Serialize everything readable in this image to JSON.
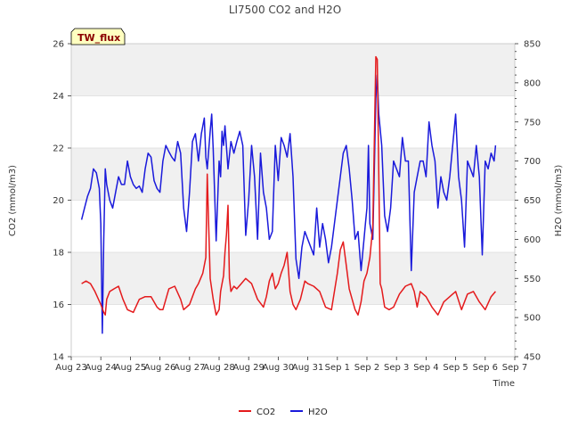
{
  "chart_data": {
    "type": "line",
    "title": "LI7500 CO2 and H2O",
    "site_label": "TW_flux",
    "xlabel": "Time",
    "ylabel_left": "CO2 (mmol/m3)",
    "ylabel_right": "H2O (mmol/m3)",
    "ylim_left": [
      14,
      26
    ],
    "ylim_right": [
      450,
      850
    ],
    "left_ticks": [
      14,
      16,
      18,
      20,
      22,
      24,
      26
    ],
    "right_ticks": [
      450,
      500,
      550,
      600,
      650,
      700,
      750,
      800,
      850
    ],
    "x_ticks": [
      "Aug 23",
      "Aug 24",
      "Aug 25",
      "Aug 26",
      "Aug 27",
      "Aug 28",
      "Aug 29",
      "Aug 30",
      "Aug 31",
      "Sep 1",
      "Sep 2",
      "Sep 3",
      "Sep 4",
      "Sep 5",
      "Sep 6",
      "Sep 7"
    ],
    "grid": true,
    "legend_position": "bottom-center",
    "colors": {
      "co2": "#e41a1c",
      "h2o": "#1a1adb",
      "band": "#f0f0f0",
      "badge_bg": "#ffffc0"
    },
    "series": [
      {
        "name": "CO2",
        "axis": "left",
        "x": [
          0.35,
          0.5,
          0.65,
          0.8,
          1.0,
          1.1,
          1.15,
          1.2,
          1.3,
          1.45,
          1.6,
          1.75,
          1.9,
          2.1,
          2.3,
          2.5,
          2.7,
          2.9,
          3.0,
          3.1,
          3.3,
          3.5,
          3.7,
          3.8,
          4.0,
          4.1,
          4.2,
          4.3,
          4.45,
          4.55,
          4.6,
          4.7,
          4.8,
          4.9,
          5.0,
          5.05,
          5.1,
          5.15,
          5.2,
          5.25,
          5.3,
          5.35,
          5.4,
          5.5,
          5.6,
          5.75,
          5.9,
          6.1,
          6.3,
          6.5,
          6.6,
          6.7,
          6.8,
          6.9,
          7.0,
          7.1,
          7.2,
          7.3,
          7.4,
          7.5,
          7.6,
          7.75,
          7.9,
          8.0,
          8.2,
          8.4,
          8.6,
          8.8,
          9.0,
          9.1,
          9.2,
          9.3,
          9.4,
          9.5,
          9.6,
          9.7,
          9.8,
          9.9,
          10.0,
          10.1,
          10.2,
          10.3,
          10.35,
          10.4,
          10.45,
          10.5,
          10.6,
          10.75,
          10.9,
          11.1,
          11.3,
          11.5,
          11.6,
          11.7,
          11.8,
          12.0,
          12.2,
          12.4,
          12.6,
          12.8,
          13.0,
          13.2,
          13.4,
          13.6,
          13.8,
          14.0,
          14.2,
          14.35
        ],
        "values": [
          16.8,
          16.9,
          16.8,
          16.5,
          16.0,
          15.7,
          15.6,
          16.2,
          16.5,
          16.6,
          16.7,
          16.2,
          15.8,
          15.7,
          16.2,
          16.3,
          16.3,
          15.9,
          15.8,
          15.8,
          16.6,
          16.7,
          16.2,
          15.8,
          16.0,
          16.3,
          16.6,
          16.8,
          17.2,
          17.8,
          21.0,
          17.0,
          16.2,
          15.6,
          15.8,
          16.5,
          16.8,
          17.1,
          18.0,
          18.7,
          19.8,
          17.0,
          16.5,
          16.7,
          16.6,
          16.8,
          17.0,
          16.8,
          16.2,
          15.9,
          16.3,
          16.9,
          17.2,
          16.6,
          16.8,
          17.2,
          17.5,
          18.0,
          16.5,
          16.0,
          15.8,
          16.2,
          16.9,
          16.8,
          16.7,
          16.5,
          15.9,
          15.8,
          17.2,
          18.1,
          18.4,
          17.5,
          16.6,
          16.2,
          15.8,
          15.6,
          16.1,
          16.9,
          17.2,
          17.8,
          19.0,
          25.5,
          25.4,
          21.0,
          16.8,
          16.6,
          15.9,
          15.8,
          15.9,
          16.4,
          16.7,
          16.8,
          16.5,
          15.9,
          16.5,
          16.3,
          15.9,
          15.6,
          16.1,
          16.3,
          16.5,
          15.8,
          16.4,
          16.5,
          16.1,
          15.8,
          16.3,
          16.5
        ]
      },
      {
        "name": "H2O",
        "axis": "right",
        "x": [
          0.35,
          0.45,
          0.55,
          0.65,
          0.75,
          0.85,
          0.95,
          1.0,
          1.05,
          1.1,
          1.15,
          1.2,
          1.3,
          1.4,
          1.5,
          1.6,
          1.7,
          1.8,
          1.9,
          2.0,
          2.1,
          2.2,
          2.3,
          2.4,
          2.5,
          2.6,
          2.7,
          2.8,
          2.9,
          3.0,
          3.1,
          3.2,
          3.3,
          3.4,
          3.5,
          3.6,
          3.7,
          3.8,
          3.9,
          4.0,
          4.1,
          4.2,
          4.3,
          4.4,
          4.5,
          4.55,
          4.6,
          4.7,
          4.75,
          4.8,
          4.9,
          5.0,
          5.05,
          5.1,
          5.15,
          5.2,
          5.3,
          5.4,
          5.5,
          5.6,
          5.7,
          5.8,
          5.9,
          6.0,
          6.1,
          6.2,
          6.3,
          6.4,
          6.5,
          6.6,
          6.7,
          6.8,
          6.9,
          7.0,
          7.1,
          7.2,
          7.3,
          7.4,
          7.5,
          7.6,
          7.7,
          7.8,
          7.9,
          8.0,
          8.1,
          8.2,
          8.3,
          8.4,
          8.5,
          8.6,
          8.7,
          8.8,
          8.9,
          9.0,
          9.1,
          9.2,
          9.3,
          9.4,
          9.5,
          9.6,
          9.7,
          9.8,
          9.9,
          9.95,
          10.0,
          10.05,
          10.1,
          10.2,
          10.3,
          10.35,
          10.4,
          10.5,
          10.6,
          10.7,
          10.8,
          10.9,
          11.0,
          11.1,
          11.2,
          11.3,
          11.4,
          11.5,
          11.6,
          11.7,
          11.8,
          11.9,
          12.0,
          12.1,
          12.2,
          12.3,
          12.4,
          12.5,
          12.6,
          12.7,
          12.8,
          12.9,
          13.0,
          13.1,
          13.2,
          13.3,
          13.4,
          13.5,
          13.6,
          13.7,
          13.8,
          13.9,
          14.0,
          14.1,
          14.2,
          14.3,
          14.35
        ],
        "values": [
          625,
          640,
          655,
          665,
          690,
          685,
          665,
          620,
          480,
          600,
          690,
          670,
          650,
          640,
          660,
          680,
          670,
          670,
          700,
          680,
          670,
          665,
          668,
          660,
          690,
          710,
          705,
          675,
          665,
          660,
          700,
          720,
          712,
          705,
          700,
          725,
          710,
          640,
          610,
          660,
          725,
          735,
          700,
          735,
          755,
          705,
          690,
          738,
          760,
          715,
          598,
          700,
          680,
          738,
          720,
          745,
          690,
          725,
          710,
          725,
          738,
          720,
          605,
          650,
          720,
          680,
          600,
          710,
          660,
          640,
          600,
          610,
          720,
          675,
          730,
          720,
          705,
          735,
          680,
          575,
          550,
          590,
          610,
          600,
          590,
          580,
          640,
          590,
          620,
          600,
          570,
          590,
          620,
          650,
          680,
          710,
          720,
          690,
          650,
          600,
          610,
          560,
          600,
          620,
          640,
          720,
          620,
          600,
          780,
          810,
          760,
          720,
          630,
          610,
          640,
          700,
          690,
          680,
          730,
          700,
          700,
          560,
          660,
          680,
          700,
          700,
          680,
          750,
          720,
          700,
          640,
          680,
          660,
          650,
          680,
          720,
          760,
          680,
          650,
          590,
          700,
          690,
          680,
          720,
          680,
          580,
          700,
          690,
          710,
          700,
          720
        ],
        "_note": ""
      }
    ]
  }
}
